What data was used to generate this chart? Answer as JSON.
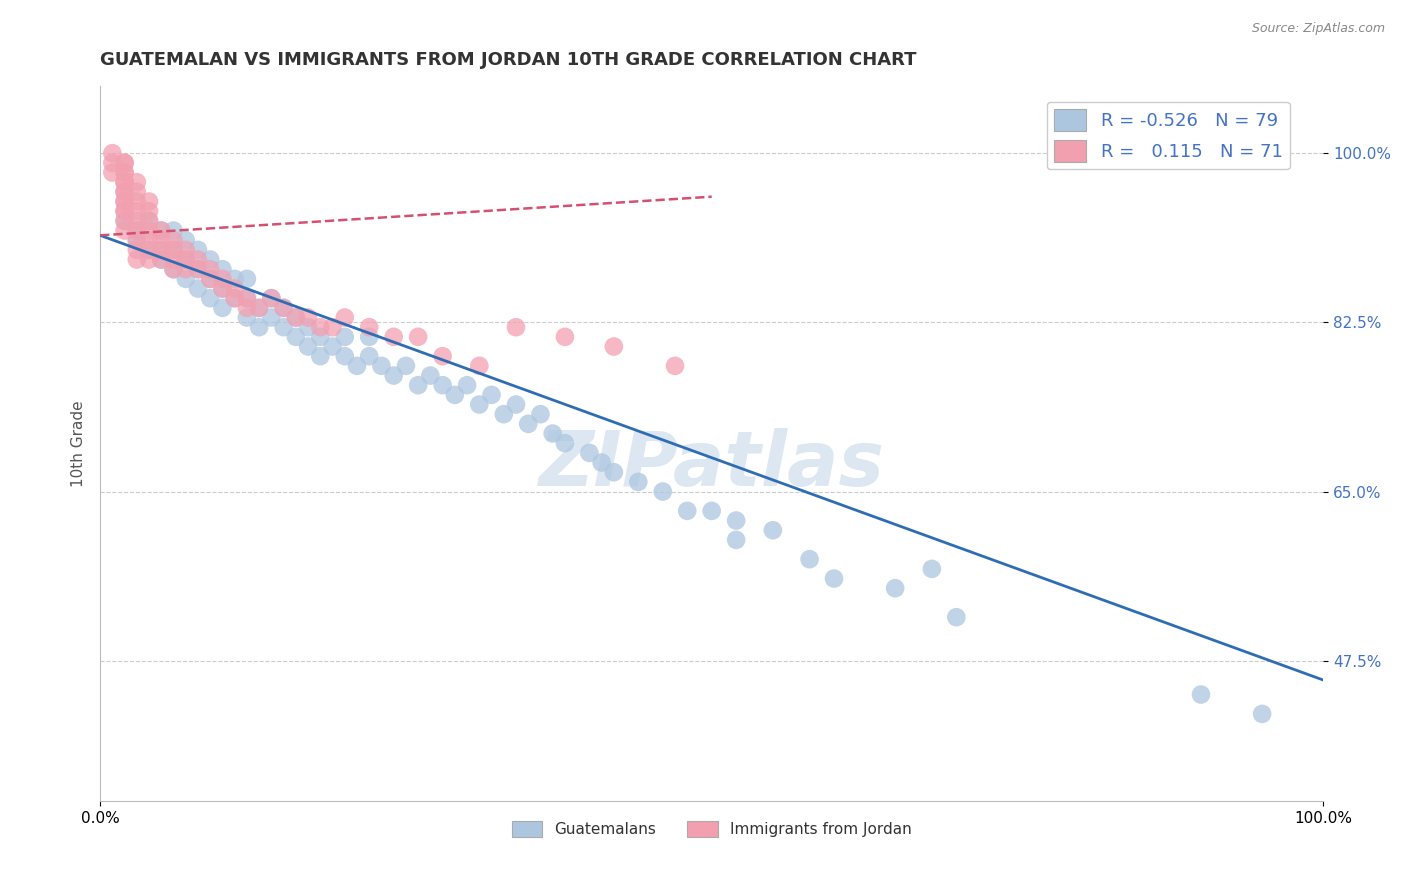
{
  "title": "GUATEMALAN VS IMMIGRANTS FROM JORDAN 10TH GRADE CORRELATION CHART",
  "source": "Source: ZipAtlas.com",
  "ylabel": "10th Grade",
  "xmin": 0.0,
  "xmax": 1.0,
  "ymin": 0.33,
  "ymax": 1.07,
  "blue_color": "#adc6e0",
  "blue_line_color": "#2e6db4",
  "pink_color": "#f2a0b0",
  "pink_line_color": "#d45070",
  "legend_R_blue": "-0.526",
  "legend_N_blue": "79",
  "legend_R_pink": "0.115",
  "legend_N_pink": "71",
  "ytick_vals": [
    0.475,
    0.65,
    0.825,
    1.0
  ],
  "ytick_labels": [
    "47.5%",
    "65.0%",
    "82.5%",
    "100.0%"
  ],
  "blue_scatter_x": [
    0.02,
    0.03,
    0.03,
    0.04,
    0.04,
    0.05,
    0.05,
    0.05,
    0.06,
    0.06,
    0.06,
    0.07,
    0.07,
    0.07,
    0.08,
    0.08,
    0.08,
    0.09,
    0.09,
    0.09,
    0.1,
    0.1,
    0.1,
    0.11,
    0.11,
    0.12,
    0.12,
    0.12,
    0.13,
    0.13,
    0.14,
    0.14,
    0.15,
    0.15,
    0.16,
    0.16,
    0.17,
    0.17,
    0.18,
    0.18,
    0.19,
    0.2,
    0.2,
    0.21,
    0.22,
    0.22,
    0.23,
    0.24,
    0.25,
    0.26,
    0.27,
    0.28,
    0.29,
    0.3,
    0.31,
    0.32,
    0.33,
    0.34,
    0.35,
    0.36,
    0.37,
    0.38,
    0.4,
    0.41,
    0.42,
    0.44,
    0.46,
    0.5,
    0.52,
    0.55,
    0.58,
    0.6,
    0.65,
    0.7,
    0.48,
    0.52,
    0.68,
    0.9,
    0.95
  ],
  "blue_scatter_y": [
    0.93,
    0.91,
    0.92,
    0.9,
    0.93,
    0.89,
    0.92,
    0.9,
    0.88,
    0.9,
    0.92,
    0.87,
    0.89,
    0.91,
    0.86,
    0.88,
    0.9,
    0.85,
    0.87,
    0.89,
    0.84,
    0.86,
    0.88,
    0.85,
    0.87,
    0.83,
    0.85,
    0.87,
    0.82,
    0.84,
    0.83,
    0.85,
    0.82,
    0.84,
    0.81,
    0.83,
    0.8,
    0.82,
    0.79,
    0.81,
    0.8,
    0.79,
    0.81,
    0.78,
    0.79,
    0.81,
    0.78,
    0.77,
    0.78,
    0.76,
    0.77,
    0.76,
    0.75,
    0.76,
    0.74,
    0.75,
    0.73,
    0.74,
    0.72,
    0.73,
    0.71,
    0.7,
    0.69,
    0.68,
    0.67,
    0.66,
    0.65,
    0.63,
    0.62,
    0.61,
    0.58,
    0.56,
    0.55,
    0.52,
    0.63,
    0.6,
    0.57,
    0.44,
    0.42
  ],
  "pink_scatter_x": [
    0.01,
    0.01,
    0.01,
    0.02,
    0.02,
    0.02,
    0.02,
    0.02,
    0.02,
    0.02,
    0.02,
    0.02,
    0.02,
    0.02,
    0.02,
    0.02,
    0.02,
    0.03,
    0.03,
    0.03,
    0.03,
    0.03,
    0.03,
    0.03,
    0.03,
    0.03,
    0.04,
    0.04,
    0.04,
    0.04,
    0.04,
    0.04,
    0.04,
    0.05,
    0.05,
    0.05,
    0.05,
    0.06,
    0.06,
    0.06,
    0.06,
    0.07,
    0.07,
    0.07,
    0.08,
    0.08,
    0.09,
    0.09,
    0.1,
    0.1,
    0.11,
    0.11,
    0.12,
    0.12,
    0.13,
    0.14,
    0.15,
    0.16,
    0.17,
    0.18,
    0.19,
    0.2,
    0.22,
    0.24,
    0.26,
    0.28,
    0.31,
    0.34,
    0.38,
    0.42,
    0.47
  ],
  "pink_scatter_y": [
    1.0,
    0.99,
    0.98,
    0.99,
    0.98,
    0.97,
    0.96,
    0.95,
    0.94,
    0.99,
    0.98,
    0.97,
    0.96,
    0.95,
    0.94,
    0.93,
    0.92,
    0.97,
    0.96,
    0.95,
    0.94,
    0.93,
    0.92,
    0.91,
    0.9,
    0.89,
    0.95,
    0.94,
    0.93,
    0.92,
    0.91,
    0.9,
    0.89,
    0.92,
    0.91,
    0.9,
    0.89,
    0.91,
    0.9,
    0.89,
    0.88,
    0.9,
    0.89,
    0.88,
    0.89,
    0.88,
    0.88,
    0.87,
    0.87,
    0.86,
    0.86,
    0.85,
    0.85,
    0.84,
    0.84,
    0.85,
    0.84,
    0.83,
    0.83,
    0.82,
    0.82,
    0.83,
    0.82,
    0.81,
    0.81,
    0.79,
    0.78,
    0.82,
    0.81,
    0.8,
    0.78
  ],
  "blue_trendline_x": [
    0.0,
    1.0
  ],
  "blue_trendline_y": [
    0.915,
    0.455
  ],
  "pink_trendline_x": [
    0.0,
    0.5
  ],
  "pink_trendline_y": [
    0.915,
    0.955
  ]
}
